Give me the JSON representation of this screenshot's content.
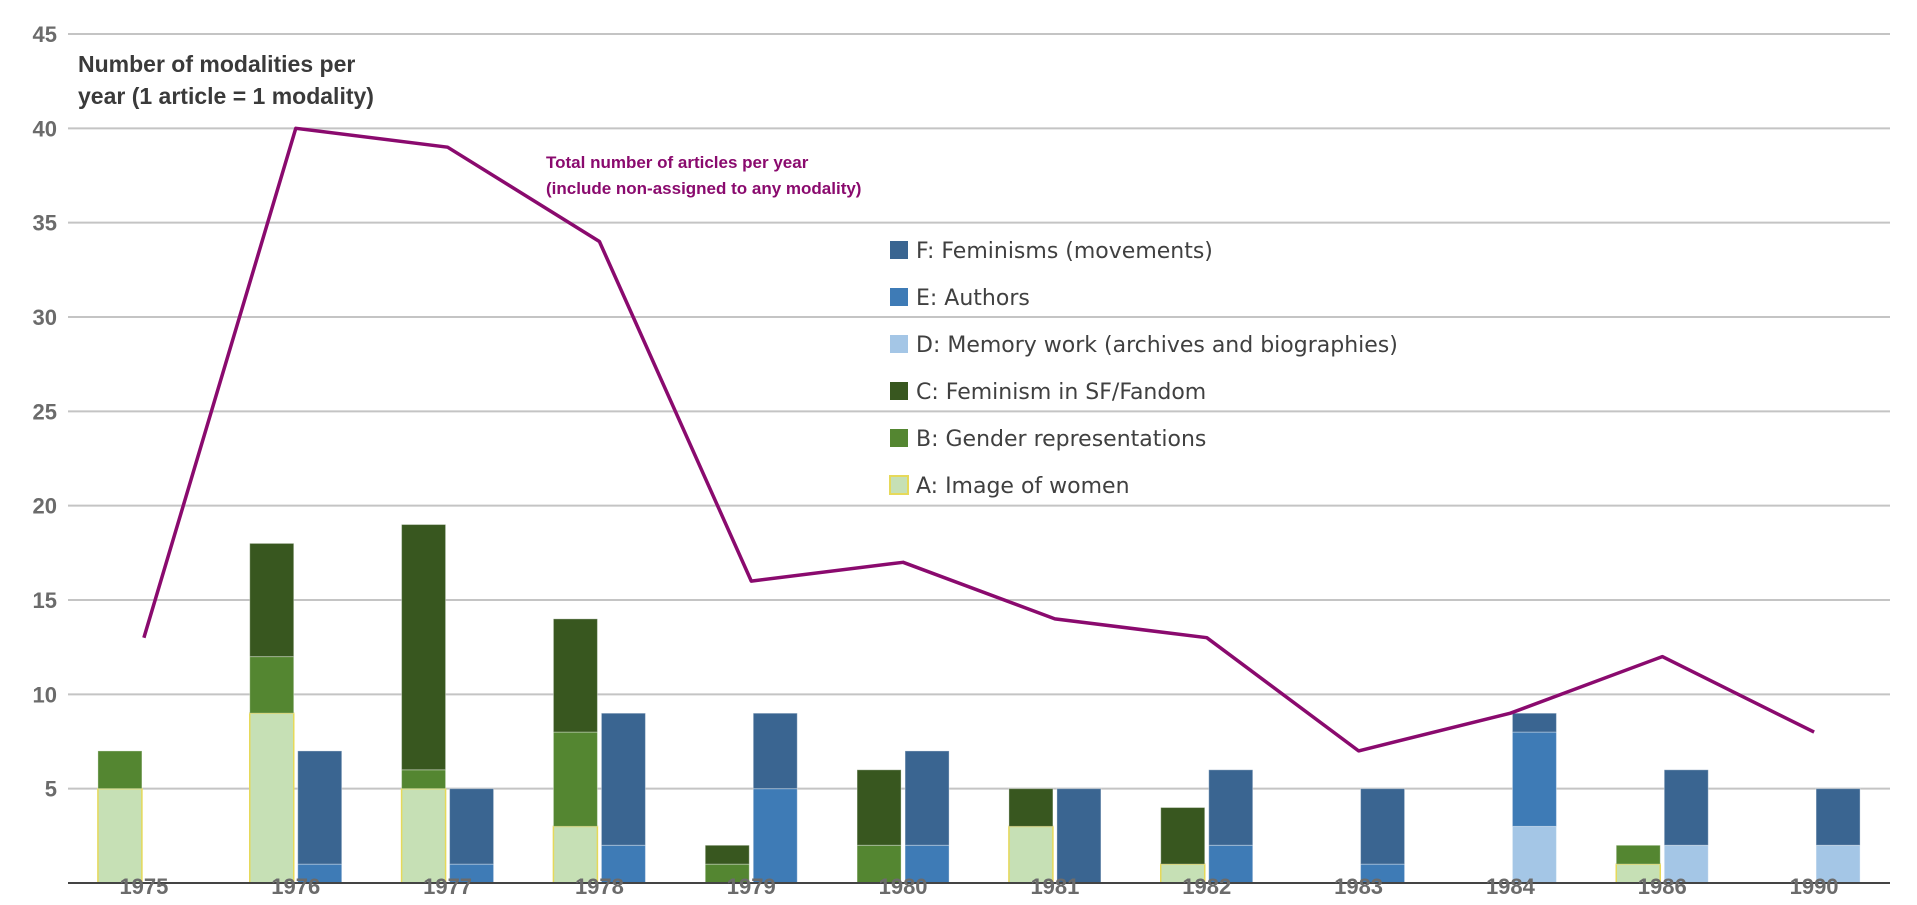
{
  "chart_data": {
    "type": "bar",
    "ylabel_lines": [
      "Number of modalities per",
      "year (1 article = 1 modality)"
    ],
    "annotation_lines": [
      "Total number of articles per year",
      "(include non-assigned to any modality)"
    ],
    "ylim": [
      0,
      45
    ],
    "yticks": [
      5,
      10,
      15,
      20,
      25,
      30,
      35,
      40,
      45
    ],
    "grid": true,
    "legend_position": "upper-middle",
    "categories": [
      "1975",
      "1976",
      "1977",
      "1978",
      "1979",
      "1980",
      "1981",
      "1982",
      "1983",
      "1984",
      "1986",
      "1990"
    ],
    "left_stack": {
      "A": [
        5,
        9,
        5,
        3,
        0,
        0,
        3,
        1,
        0,
        0,
        1,
        0
      ],
      "B": [
        2,
        3,
        1,
        5,
        1,
        2,
        0,
        0,
        0,
        0,
        1,
        0
      ],
      "C": [
        0,
        6,
        13,
        6,
        1,
        4,
        2,
        3,
        0,
        0,
        0,
        0
      ]
    },
    "right_stack": {
      "D": [
        0,
        0,
        0,
        0,
        0,
        0,
        0,
        0,
        0,
        3,
        2,
        2
      ],
      "E": [
        0,
        1,
        1,
        2,
        5,
        2,
        0,
        2,
        1,
        5,
        0,
        0
      ],
      "F": [
        0,
        6,
        4,
        7,
        4,
        5,
        5,
        4,
        4,
        1,
        4,
        3
      ]
    },
    "series": [
      {
        "key": "F",
        "name": "F: Feminisms (movements)",
        "color": "#3a6591",
        "stack": "right"
      },
      {
        "key": "E",
        "name": "E: Authors",
        "color": "#3e7bb6",
        "stack": "right"
      },
      {
        "key": "D",
        "name": "D: Memory work (archives and biographies)",
        "color": "#a4c6e6",
        "stack": "right"
      },
      {
        "key": "C",
        "name": "C: Feminism in SF/Fandom",
        "color": "#38571f",
        "stack": "left"
      },
      {
        "key": "B",
        "name": "B: Gender representations",
        "color": "#548631",
        "stack": "left"
      },
      {
        "key": "A",
        "name": "A: Image of women",
        "color": "#c6e0b5",
        "stroke": "#e6d95a",
        "stack": "left"
      }
    ],
    "line": {
      "color": "#8a0a6e",
      "values": [
        13,
        40,
        39,
        34,
        16,
        17,
        14,
        13,
        7,
        9,
        12,
        8
      ]
    }
  }
}
